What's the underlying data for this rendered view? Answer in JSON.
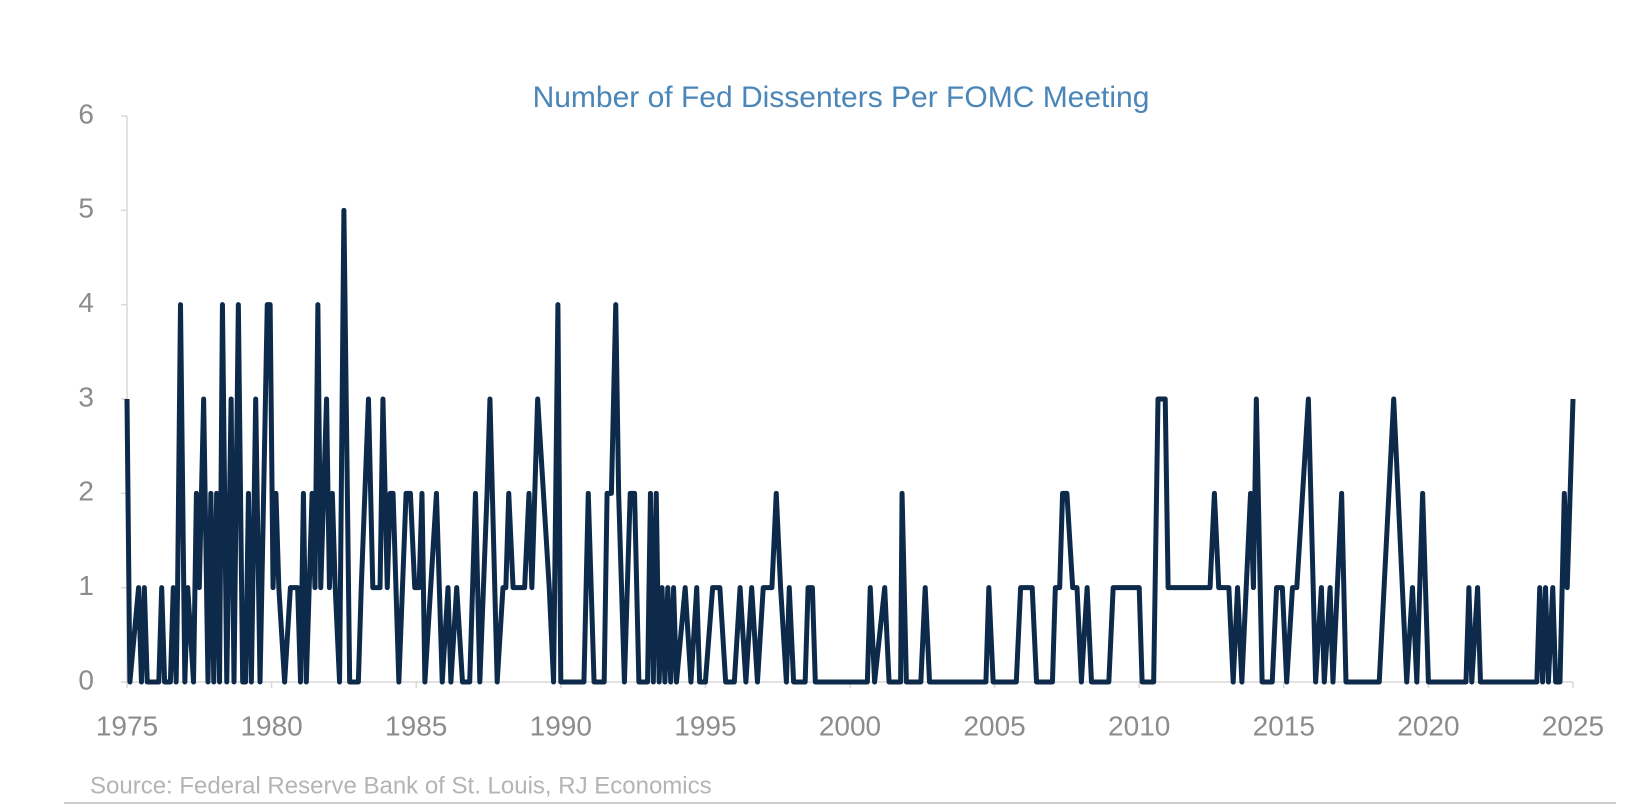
{
  "chart_data": {
    "type": "line",
    "title": "Number of Fed Dissenters Per FOMC Meeting",
    "source": "Source: Federal Reserve Bank of St. Louis, RJ Economics",
    "color": "#0d2a4a",
    "xlim": [
      1975,
      2025
    ],
    "xticks": [
      1975,
      1980,
      1985,
      1990,
      1995,
      2000,
      2005,
      2010,
      2015,
      2020,
      2025
    ],
    "ylim": [
      0,
      6
    ],
    "yticks": [
      0,
      1,
      2,
      3,
      4,
      5,
      6
    ],
    "grid": false,
    "x": [
      1975.0,
      1975.1,
      1975.4,
      1975.5,
      1975.6,
      1975.7,
      1976.1,
      1976.2,
      1976.3,
      1976.5,
      1976.6,
      1976.7,
      1976.75,
      1976.85,
      1977.0,
      1977.1,
      1977.3,
      1977.4,
      1977.5,
      1977.65,
      1977.8,
      1977.9,
      1978.0,
      1978.1,
      1978.2,
      1978.3,
      1978.45,
      1978.6,
      1978.7,
      1978.85,
      1979.0,
      1979.1,
      1979.2,
      1979.3,
      1979.45,
      1979.6,
      1979.85,
      1979.95,
      1980.05,
      1980.15,
      1980.25,
      1980.45,
      1980.65,
      1980.9,
      1981.0,
      1981.1,
      1981.2,
      1981.4,
      1981.5,
      1981.6,
      1981.7,
      1981.9,
      1982.0,
      1982.1,
      1982.2,
      1982.35,
      1982.5,
      1982.7,
      1983.0,
      1983.1,
      1983.35,
      1983.5,
      1983.75,
      1983.85,
      1984.0,
      1984.1,
      1984.2,
      1984.4,
      1984.65,
      1984.8,
      1984.95,
      1985.1,
      1985.2,
      1985.3,
      1985.5,
      1985.7,
      1985.9,
      1986.1,
      1986.2,
      1986.4,
      1986.6,
      1986.85,
      1987.05,
      1987.2,
      1987.45,
      1987.55,
      1987.8,
      1988.0,
      1988.1,
      1988.2,
      1988.35,
      1988.75,
      1988.9,
      1989.0,
      1989.2,
      1989.4,
      1989.6,
      1989.75,
      1989.9,
      1990.0,
      1990.8,
      1990.95,
      1991.15,
      1991.5,
      1991.6,
      1991.75,
      1991.9,
      1992.0,
      1992.2,
      1992.4,
      1992.55,
      1992.7,
      1993.0,
      1993.1,
      1993.2,
      1993.3,
      1993.4,
      1993.5,
      1993.6,
      1993.7,
      1993.8,
      1993.9,
      1994.0,
      1994.3,
      1994.5,
      1994.7,
      1994.8,
      1995.0,
      1995.25,
      1995.5,
      1995.7,
      1996.0,
      1996.2,
      1996.4,
      1996.6,
      1996.8,
      1997.0,
      1997.3,
      1997.45,
      1997.6,
      1997.8,
      1997.9,
      1998.05,
      1998.45,
      1998.55,
      1998.7,
      1998.8,
      2000.6,
      2000.7,
      2000.85,
      2001.2,
      2001.35,
      2001.75,
      2001.8,
      2001.95,
      2002.45,
      2002.6,
      2002.75,
      2004.7,
      2004.8,
      2004.95,
      2005.75,
      2005.9,
      2006.3,
      2006.45,
      2007.0,
      2007.1,
      2007.25,
      2007.35,
      2007.5,
      2007.7,
      2007.85,
      2008.0,
      2008.2,
      2008.35,
      2008.95,
      2009.1,
      2010.0,
      2010.1,
      2010.5,
      2010.65,
      2010.9,
      2011.0,
      2012.45,
      2012.6,
      2012.75,
      2013.1,
      2013.25,
      2013.4,
      2013.55,
      2013.85,
      2013.95,
      2014.05,
      2014.25,
      2014.6,
      2014.75,
      2014.95,
      2015.1,
      2015.3,
      2015.45,
      2015.85,
      2016.1,
      2016.3,
      2016.4,
      2016.6,
      2016.7,
      2017.0,
      2017.15,
      2018.3,
      2018.8,
      2019.25,
      2019.45,
      2019.6,
      2019.8,
      2020.0,
      2021.3,
      2021.4,
      2021.5,
      2021.7,
      2021.8,
      2023.75,
      2023.85,
      2023.95,
      2024.05,
      2024.15,
      2024.3,
      2024.4,
      2024.55,
      2024.7,
      2024.8,
      2025.0
    ],
    "values": [
      3,
      0,
      1,
      0,
      1,
      0,
      0,
      1,
      0,
      0,
      1,
      0,
      1,
      4,
      0,
      1,
      0,
      2,
      1,
      3,
      0,
      2,
      0,
      2,
      0,
      4,
      0,
      3,
      0,
      4,
      0,
      0,
      2,
      0,
      3,
      0,
      4,
      4,
      1,
      2,
      1,
      0,
      1,
      1,
      0,
      2,
      0,
      2,
      1,
      4,
      1,
      3,
      1,
      2,
      1,
      0,
      5,
      0,
      0,
      1,
      3,
      1,
      1,
      3,
      1,
      2,
      2,
      0,
      2,
      2,
      1,
      1,
      2,
      0,
      1,
      2,
      0,
      1,
      0,
      1,
      0,
      0,
      2,
      0,
      2,
      3,
      0,
      1,
      1,
      2,
      1,
      1,
      2,
      1,
      3,
      2,
      1,
      0,
      4,
      0,
      0,
      2,
      0,
      0,
      2,
      2,
      4,
      2,
      0,
      2,
      2,
      0,
      0,
      2,
      0,
      2,
      0,
      1,
      0,
      1,
      0,
      1,
      0,
      1,
      0,
      1,
      0,
      0,
      1,
      1,
      0,
      0,
      1,
      0,
      1,
      0,
      1,
      1,
      2,
      1,
      0,
      1,
      0,
      0,
      1,
      1,
      0,
      0,
      1,
      0,
      1,
      0,
      0,
      2,
      0,
      0,
      1,
      0,
      0,
      1,
      0,
      0,
      1,
      1,
      0,
      0,
      1,
      1,
      2,
      2,
      1,
      1,
      0,
      1,
      0,
      0,
      1,
      1,
      0,
      0,
      3,
      3,
      1,
      1,
      2,
      1,
      1,
      0,
      1,
      0,
      2,
      1,
      3,
      0,
      0,
      1,
      1,
      0,
      1,
      1,
      3,
      0,
      1,
      0,
      1,
      0,
      2,
      0,
      0,
      3,
      0,
      1,
      0,
      2,
      0,
      0,
      1,
      0,
      1,
      0,
      0,
      1,
      0,
      1,
      0,
      1,
      0,
      0,
      2,
      1,
      3
    ]
  }
}
